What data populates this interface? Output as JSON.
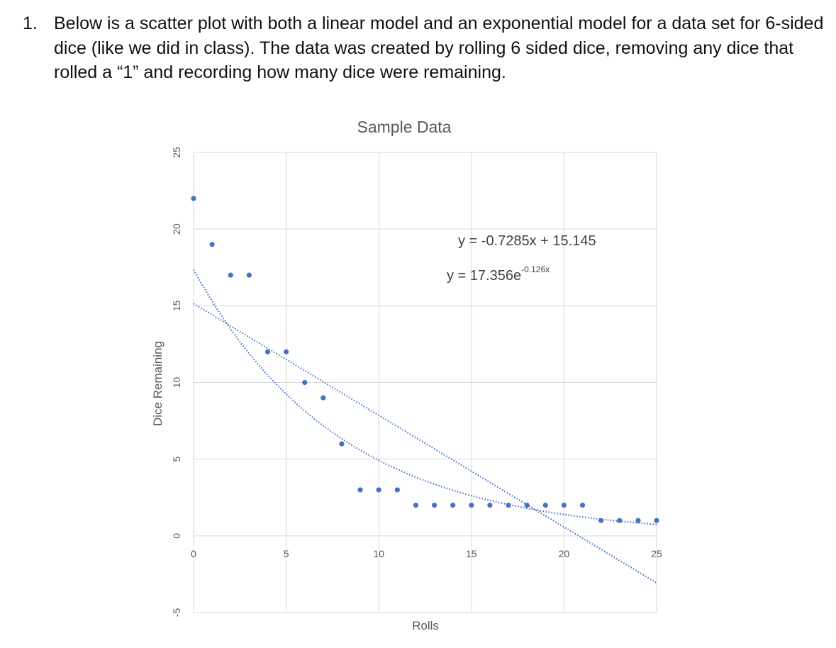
{
  "question": {
    "number": "1.",
    "text": "Below is a scatter plot with both a linear model and an exponential model for a data set for 6-sided dice (like we did in class).  The data was created by rolling 6 sided dice, removing any dice that rolled a “1” and recording how many dice were remaining."
  },
  "chart_data": {
    "type": "scatter",
    "title": "Sample Data",
    "xlabel": "Rolls",
    "ylabel": "Dice Remaining",
    "xlim": [
      0,
      25
    ],
    "ylim": [
      -5,
      25
    ],
    "x_ticks": [
      0,
      5,
      10,
      15,
      20,
      25
    ],
    "y_ticks": [
      -5,
      0,
      5,
      10,
      15,
      20,
      25
    ],
    "grid": true,
    "marker_color": "#4472c4",
    "series": [
      {
        "x": [
          0,
          1,
          2,
          3,
          4,
          5,
          6,
          7,
          8,
          9,
          10,
          11,
          12,
          13,
          14,
          15,
          16,
          17,
          18,
          19,
          20,
          21,
          22,
          23,
          24,
          25
        ],
        "y": [
          22,
          19,
          17,
          17,
          12,
          12,
          10,
          9,
          6,
          3,
          3,
          3,
          2,
          2,
          2,
          2,
          2,
          2,
          2,
          2,
          2,
          2,
          1,
          1,
          1,
          1
        ]
      }
    ],
    "trendlines": [
      {
        "kind": "linear",
        "slope": -0.7285,
        "intercept": 15.145,
        "label": "y = -0.7285x + 15.145"
      },
      {
        "kind": "exponential",
        "a": 17.356,
        "b": -0.126,
        "label_base": "y = 17.356e",
        "label_exp": "-0.126x"
      }
    ]
  }
}
